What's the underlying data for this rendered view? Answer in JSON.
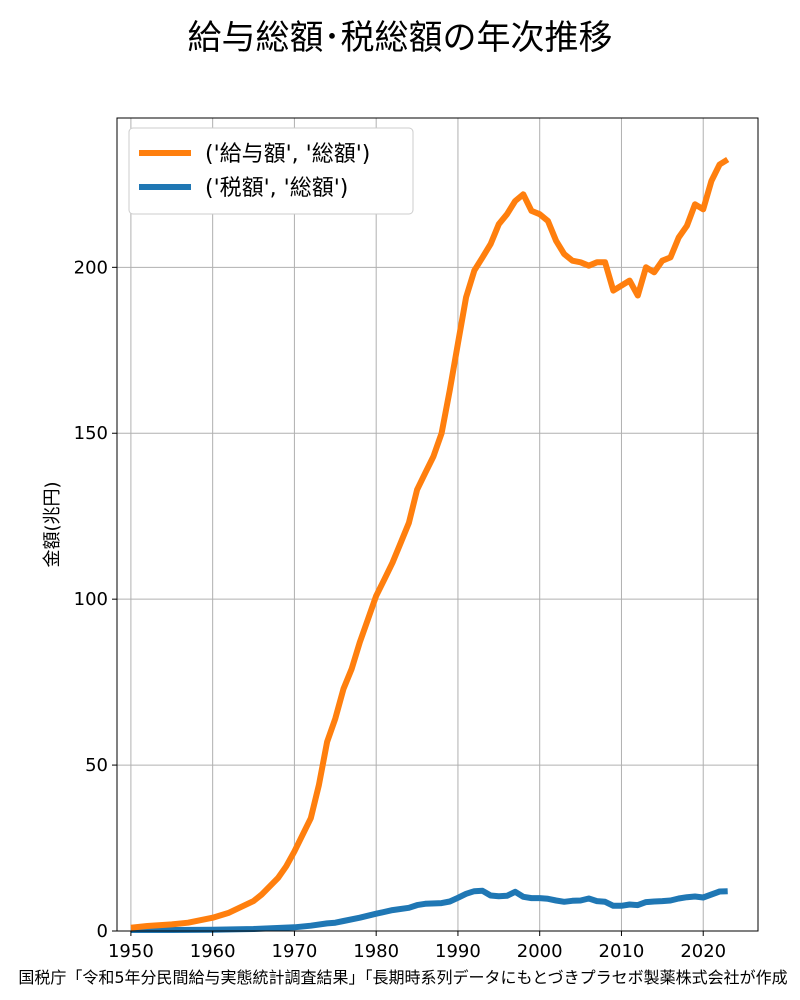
{
  "title": "給与総額･税総額の年次推移",
  "source": "国税庁「令和5年分民間給与実態統計調査結果」｢長期時系列データにもとづきプラセボ製薬株式会社が作成",
  "chart_data": {
    "type": "line",
    "title": "給与総額･税総額の年次推移",
    "xlabel": "",
    "ylabel": "金額(兆円)",
    "xlim": [
      1948.3,
      2026.7
    ],
    "ylim": [
      0,
      245
    ],
    "xticks": [
      1950,
      1960,
      1970,
      1980,
      1990,
      2000,
      2010,
      2020
    ],
    "yticks": [
      0,
      50,
      100,
      150,
      200
    ],
    "grid": true,
    "legend_position": "upper-left",
    "series": [
      {
        "name": "('給与額', '総額')",
        "color": "#ff7f0e",
        "points": [
          [
            1950,
            1.0
          ],
          [
            1952,
            1.5
          ],
          [
            1955,
            2.0
          ],
          [
            1957,
            2.5
          ],
          [
            1960,
            4.0
          ],
          [
            1962,
            5.5
          ],
          [
            1965,
            9.0
          ],
          [
            1966,
            11.0
          ],
          [
            1968,
            16.0
          ],
          [
            1969,
            19.5
          ],
          [
            1970,
            24.0
          ],
          [
            1971,
            29.0
          ],
          [
            1972,
            34.0
          ],
          [
            1973,
            44.0
          ],
          [
            1974,
            57.0
          ],
          [
            1975,
            64.0
          ],
          [
            1976,
            73.0
          ],
          [
            1977,
            79.0
          ],
          [
            1978,
            87.0
          ],
          [
            1979,
            94.0
          ],
          [
            1980,
            101.0
          ],
          [
            1981,
            106.0
          ],
          [
            1982,
            111.0
          ],
          [
            1983,
            117.0
          ],
          [
            1984,
            123.0
          ],
          [
            1985,
            133.0
          ],
          [
            1986,
            138.0
          ],
          [
            1987,
            143.0
          ],
          [
            1988,
            150.0
          ],
          [
            1989,
            163.0
          ],
          [
            1990,
            177.0
          ],
          [
            1991,
            191.0
          ],
          [
            1992,
            199.0
          ],
          [
            1993,
            203.0
          ],
          [
            1994,
            207.0
          ],
          [
            1995,
            213.0
          ],
          [
            1996,
            216.0
          ],
          [
            1997,
            220.0
          ],
          [
            1998,
            222.0
          ],
          [
            1999,
            217.0
          ],
          [
            2000,
            216.0
          ],
          [
            2001,
            214.0
          ],
          [
            2002,
            208.0
          ],
          [
            2003,
            204.0
          ],
          [
            2004,
            202.0
          ],
          [
            2005,
            201.5
          ],
          [
            2006,
            200.5
          ],
          [
            2007,
            201.5
          ],
          [
            2008,
            201.5
          ],
          [
            2009,
            193.0
          ],
          [
            2010,
            194.5
          ],
          [
            2011,
            196.0
          ],
          [
            2012,
            191.5
          ],
          [
            2013,
            200.0
          ],
          [
            2014,
            198.5
          ],
          [
            2015,
            202.0
          ],
          [
            2016,
            203.0
          ],
          [
            2017,
            209.0
          ],
          [
            2018,
            212.5
          ],
          [
            2019,
            219.0
          ],
          [
            2020,
            217.5
          ],
          [
            2021,
            226.0
          ],
          [
            2022,
            231.0
          ],
          [
            2023,
            232.5
          ]
        ]
      },
      {
        "name": "('税額', '総額')",
        "color": "#1f77b4",
        "points": [
          [
            1950,
            0.3
          ],
          [
            1955,
            0.3
          ],
          [
            1960,
            0.4
          ],
          [
            1965,
            0.6
          ],
          [
            1970,
            1.1
          ],
          [
            1972,
            1.6
          ],
          [
            1974,
            2.3
          ],
          [
            1975,
            2.5
          ],
          [
            1976,
            3.0
          ],
          [
            1978,
            4.0
          ],
          [
            1980,
            5.2
          ],
          [
            1982,
            6.3
          ],
          [
            1984,
            7.0
          ],
          [
            1985,
            7.8
          ],
          [
            1986,
            8.2
          ],
          [
            1988,
            8.4
          ],
          [
            1989,
            8.9
          ],
          [
            1990,
            10.0
          ],
          [
            1991,
            11.2
          ],
          [
            1992,
            12.0
          ],
          [
            1993,
            12.1
          ],
          [
            1994,
            10.7
          ],
          [
            1995,
            10.5
          ],
          [
            1996,
            10.6
          ],
          [
            1997,
            11.8
          ],
          [
            1998,
            10.3
          ],
          [
            1999,
            9.9
          ],
          [
            2000,
            9.9
          ],
          [
            2001,
            9.7
          ],
          [
            2002,
            9.2
          ],
          [
            2003,
            8.8
          ],
          [
            2004,
            9.1
          ],
          [
            2005,
            9.2
          ],
          [
            2006,
            9.8
          ],
          [
            2007,
            9.0
          ],
          [
            2008,
            8.8
          ],
          [
            2009,
            7.6
          ],
          [
            2010,
            7.6
          ],
          [
            2011,
            8.0
          ],
          [
            2012,
            7.8
          ],
          [
            2013,
            8.7
          ],
          [
            2014,
            8.9
          ],
          [
            2015,
            9.0
          ],
          [
            2016,
            9.2
          ],
          [
            2017,
            9.8
          ],
          [
            2018,
            10.2
          ],
          [
            2019,
            10.4
          ],
          [
            2020,
            10.1
          ],
          [
            2021,
            11.0
          ],
          [
            2022,
            11.9
          ],
          [
            2023,
            12.0
          ]
        ]
      }
    ]
  }
}
